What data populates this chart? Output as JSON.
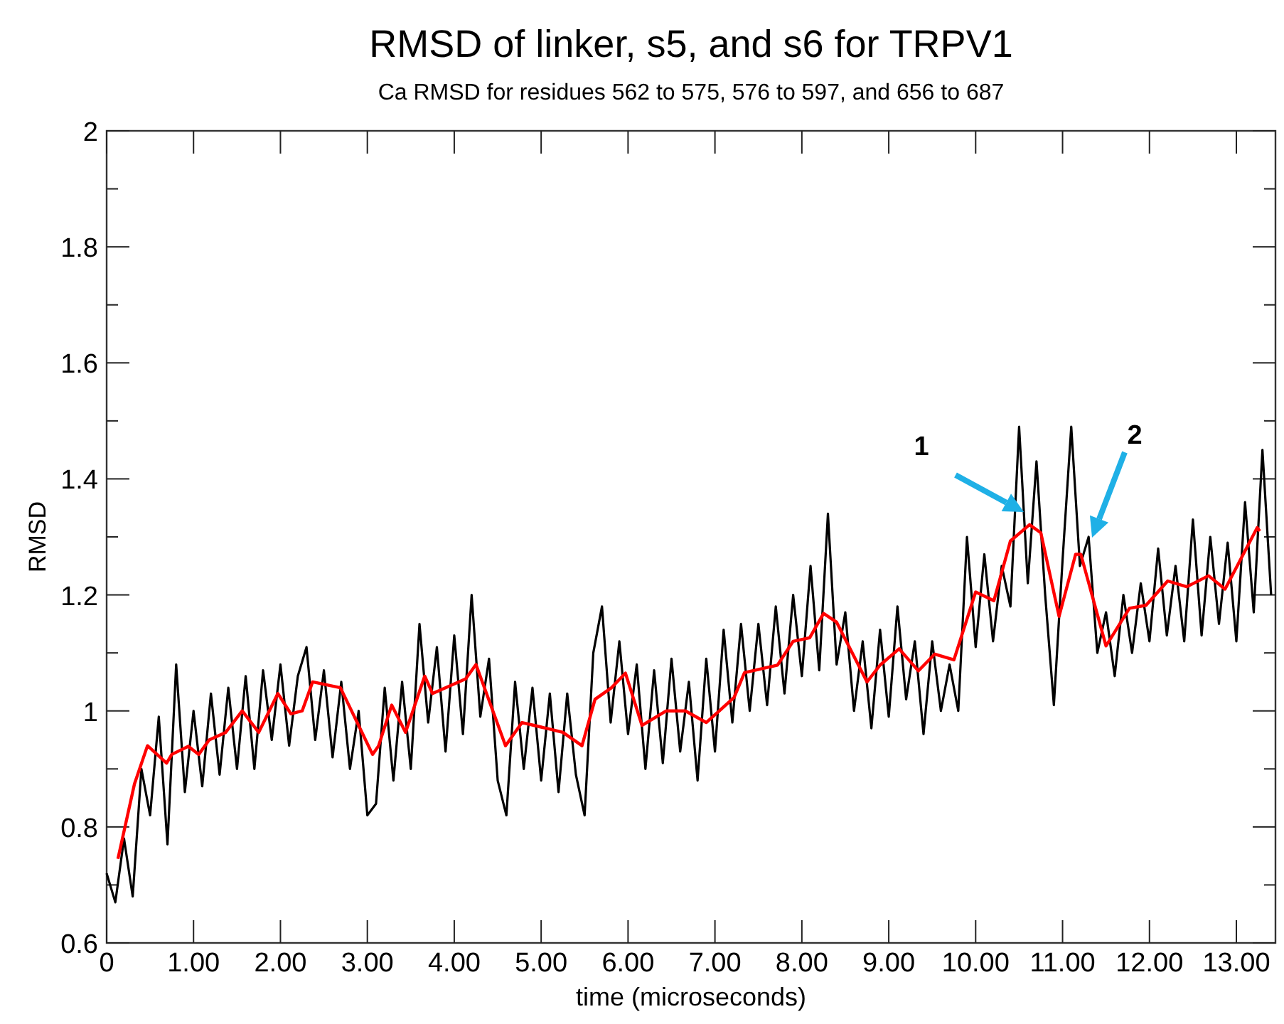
{
  "chart_data": {
    "type": "line",
    "title": "RMSD of linker, s5, and s6 for TRPV1",
    "subtitle": "Ca RMSD for residues 562 to 575, 576 to 597, and 656 to 687",
    "xlabel": "time (microseconds)",
    "ylabel": "RMSD",
    "xlim": [
      0,
      13.45
    ],
    "ylim": [
      0.6,
      2
    ],
    "xticks": [
      {
        "value": 0,
        "label": "0"
      },
      {
        "value": 1,
        "label": "1.00"
      },
      {
        "value": 2,
        "label": "2.00"
      },
      {
        "value": 3,
        "label": "3.00"
      },
      {
        "value": 4,
        "label": "4.00"
      },
      {
        "value": 5,
        "label": "5.00"
      },
      {
        "value": 6,
        "label": "6.00"
      },
      {
        "value": 7,
        "label": "7.00"
      },
      {
        "value": 8,
        "label": "8.00"
      },
      {
        "value": 9,
        "label": "9.00"
      },
      {
        "value": 10,
        "label": "10.00"
      },
      {
        "value": 11,
        "label": "11.00"
      },
      {
        "value": 12,
        "label": "12.00"
      },
      {
        "value": 13,
        "label": "13.00"
      }
    ],
    "yticks": [
      0.6,
      {
        "value": 0.7,
        "label": null
      },
      0.8,
      {
        "value": 0.9,
        "label": null
      },
      1,
      {
        "value": 1.1,
        "label": null
      },
      1.2,
      {
        "value": 1.3,
        "label": null
      },
      1.4,
      {
        "value": 1.5,
        "label": null
      },
      1.6,
      {
        "value": 1.7,
        "label": null
      },
      1.8,
      {
        "value": 1.9,
        "label": null
      },
      2
    ],
    "grid": false,
    "marker": "none",
    "line_style": "solid",
    "series": [
      {
        "color": "#000000",
        "x": [
          0,
          0.1,
          0.2,
          0.3,
          0.4,
          0.5,
          0.6,
          0.7,
          0.8,
          0.9,
          1.0,
          1.1,
          1.2,
          1.3,
          1.4,
          1.5,
          1.6,
          1.7,
          1.8,
          1.9,
          2.0,
          2.1,
          2.2,
          2.3,
          2.4,
          2.5,
          2.6,
          2.7,
          2.8,
          2.9,
          3.0,
          3.1,
          3.2,
          3.3,
          3.4,
          3.5,
          3.6,
          3.7,
          3.8,
          3.9,
          4.0,
          4.1,
          4.2,
          4.3,
          4.4,
          4.5,
          4.6,
          4.7,
          4.8,
          4.9,
          5.0,
          5.1,
          5.2,
          5.3,
          5.4,
          5.5,
          5.6,
          5.7,
          5.8,
          5.9,
          6.0,
          6.1,
          6.2,
          6.3,
          6.4,
          6.5,
          6.6,
          6.7,
          6.8,
          6.9,
          7.0,
          7.1,
          7.2,
          7.3,
          7.4,
          7.5,
          7.6,
          7.7,
          7.8,
          7.9,
          8.0,
          8.1,
          8.2,
          8.3,
          8.4,
          8.5,
          8.6,
          8.7,
          8.8,
          8.9,
          9.0,
          9.1,
          9.2,
          9.3,
          9.4,
          9.5,
          9.6,
          9.7,
          9.8,
          9.9,
          10.0,
          10.1,
          10.2,
          10.3,
          10.4,
          10.5,
          10.6,
          10.7,
          10.8,
          10.9,
          11.0,
          11.1,
          11.2,
          11.3,
          11.4,
          11.5,
          11.6,
          11.7,
          11.8,
          11.9,
          12.0,
          12.1,
          12.2,
          12.3,
          12.4,
          12.5,
          12.6,
          12.7,
          12.8,
          12.9,
          13.0,
          13.1,
          13.2,
          13.3,
          13.4
        ],
        "values": [
          0.72,
          0.67,
          0.78,
          0.68,
          0.9,
          0.82,
          0.99,
          0.77,
          1.08,
          0.86,
          1.0,
          0.87,
          1.03,
          0.89,
          1.04,
          0.9,
          1.06,
          0.9,
          1.07,
          0.95,
          1.08,
          0.94,
          1.06,
          1.11,
          0.95,
          1.07,
          0.92,
          1.05,
          0.9,
          1.0,
          0.82,
          0.84,
          1.04,
          0.88,
          1.05,
          0.9,
          1.15,
          0.98,
          1.11,
          0.93,
          1.13,
          0.96,
          1.2,
          0.99,
          1.09,
          0.88,
          0.82,
          1.05,
          0.9,
          1.04,
          0.88,
          1.03,
          0.86,
          1.03,
          0.89,
          0.82,
          1.1,
          1.18,
          0.98,
          1.12,
          0.96,
          1.08,
          0.9,
          1.07,
          0.91,
          1.09,
          0.93,
          1.05,
          0.88,
          1.09,
          0.93,
          1.14,
          0.98,
          1.15,
          1.0,
          1.15,
          1.01,
          1.18,
          1.03,
          1.2,
          1.06,
          1.25,
          1.07,
          1.34,
          1.08,
          1.17,
          1.0,
          1.12,
          0.97,
          1.14,
          0.99,
          1.18,
          1.02,
          1.12,
          0.96,
          1.12,
          1.0,
          1.08,
          1.0,
          1.3,
          1.11,
          1.27,
          1.12,
          1.25,
          1.18,
          1.49,
          1.22,
          1.43,
          1.2,
          1.01,
          1.26,
          1.49,
          1.25,
          1.3,
          1.1,
          1.17,
          1.06,
          1.2,
          1.1,
          1.22,
          1.12,
          1.28,
          1.13,
          1.25,
          1.12,
          1.33,
          1.13,
          1.3,
          1.15,
          1.29,
          1.12,
          1.36,
          1.17,
          1.45,
          1.2
        ]
      },
      {
        "color": "#ff0000",
        "x": [
          0.13,
          0.32,
          0.47,
          0.69,
          0.75,
          0.94,
          1.06,
          1.18,
          1.37,
          1.56,
          1.75,
          1.97,
          2.12,
          2.25,
          2.37,
          2.69,
          3.06,
          3.13,
          3.28,
          3.44,
          3.66,
          3.75,
          4.13,
          4.25,
          4.59,
          4.78,
          5.06,
          5.25,
          5.47,
          5.62,
          5.81,
          5.97,
          6.16,
          6.44,
          6.66,
          6.9,
          7.22,
          7.34,
          7.72,
          7.9,
          8.09,
          8.25,
          8.4,
          8.75,
          8.9,
          9.12,
          9.34,
          9.53,
          9.75,
          10.0,
          10.21,
          10.4,
          10.62,
          10.75,
          10.96,
          11.15,
          11.21,
          11.5,
          11.77,
          11.96,
          12.21,
          12.43,
          12.68,
          12.87,
          13.24,
          13.27
        ],
        "values": [
          0.745,
          0.874,
          0.94,
          0.91,
          0.925,
          0.939,
          0.925,
          0.95,
          0.963,
          1.0,
          0.963,
          1.03,
          0.995,
          1.0,
          1.05,
          1.04,
          0.925,
          0.94,
          1.01,
          0.963,
          1.06,
          1.03,
          1.055,
          1.08,
          0.94,
          0.98,
          0.97,
          0.963,
          0.94,
          1.02,
          1.04,
          1.065,
          0.975,
          1.0,
          1.0,
          0.98,
          1.023,
          1.066,
          1.079,
          1.12,
          1.126,
          1.168,
          1.153,
          1.05,
          1.079,
          1.107,
          1.069,
          1.098,
          1.088,
          1.205,
          1.19,
          1.293,
          1.321,
          1.307,
          1.163,
          1.27,
          1.27,
          1.112,
          1.177,
          1.182,
          1.224,
          1.214,
          1.233,
          1.21,
          1.316,
          1.31
        ]
      }
    ],
    "annotations": [
      "1",
      "2"
    ]
  }
}
